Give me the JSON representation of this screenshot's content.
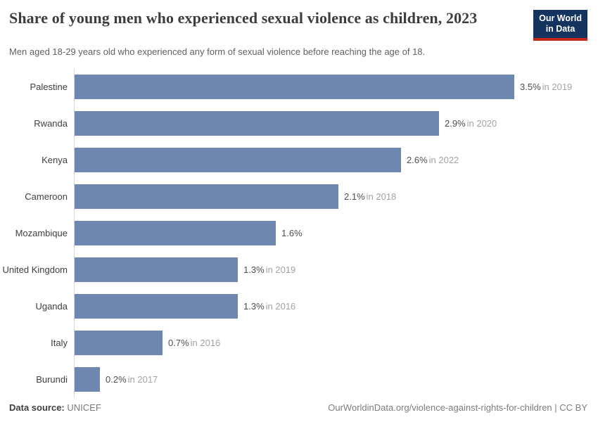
{
  "header": {
    "title": "Share of young men who experienced sexual violence as children, 2023",
    "subtitle": "Men aged 18-29 years old who experienced any form of sexual violence before reaching the age of 18.",
    "logo": {
      "line1": "Our World",
      "line2": "in Data",
      "bg_color": "#15335f",
      "accent_color": "#c0281c"
    }
  },
  "chart_data": {
    "type": "bar",
    "orientation": "horizontal",
    "unit": "%",
    "title": "Share of young men who experienced sexual violence as children, 2023",
    "categories": [
      "Palestine",
      "Rwanda",
      "Kenya",
      "Cameroon",
      "Mozambique",
      "United Kingdom",
      "Uganda",
      "Italy",
      "Burundi"
    ],
    "values": [
      3.5,
      2.9,
      2.6,
      2.1,
      1.6,
      1.3,
      1.3,
      0.7,
      0.2
    ],
    "value_labels": [
      "3.5%",
      "2.9%",
      "2.6%",
      "2.1%",
      "1.6%",
      "1.3%",
      "1.3%",
      "0.7%",
      "0.2%"
    ],
    "year_labels": [
      "in 2019",
      "in 2020",
      "in 2022",
      "in 2018",
      "",
      "in 2019",
      "in 2016",
      "in 2016",
      "in 2017"
    ],
    "xlabel": "",
    "ylabel": "",
    "xlim": [
      0,
      3.5
    ],
    "grid": false,
    "legend": false,
    "bar_color": "#6d87ae",
    "axis_color": "#d9d9d9"
  },
  "footer": {
    "source_label": "Data source:",
    "source_value": "UNICEF",
    "citation": "OurWorldinData.org/violence-against-rights-for-children | CC BY"
  }
}
